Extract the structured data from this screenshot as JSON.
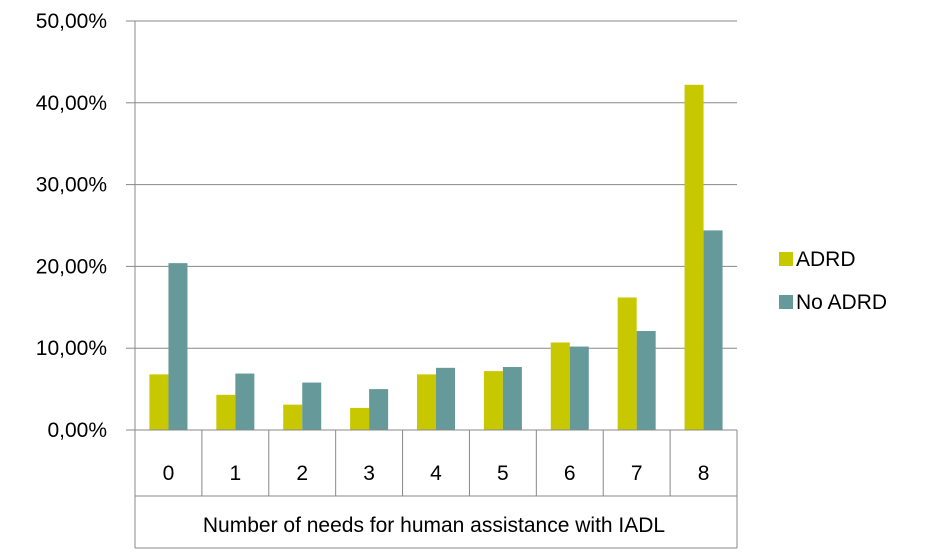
{
  "chart_data": {
    "type": "bar",
    "categories": [
      "0",
      "1",
      "2",
      "3",
      "4",
      "5",
      "6",
      "7",
      "8"
    ],
    "series": [
      {
        "name": "ADRD",
        "color": "#c8c800",
        "values": [
          6.8,
          4.3,
          3.1,
          2.7,
          6.8,
          7.2,
          10.7,
          16.2,
          42.2
        ]
      },
      {
        "name": "No ADRD",
        "color": "#669999",
        "values": [
          20.4,
          6.9,
          5.8,
          5.0,
          7.6,
          7.7,
          10.2,
          12.1,
          24.4
        ]
      }
    ],
    "y_ticks": [
      "0,00%",
      "10,00%",
      "20,00%",
      "30,00%",
      "40,00%",
      "50,00%"
    ],
    "ylim": [
      0,
      50
    ],
    "xlabel": "Number of needs for human assistance with IADL",
    "ylabel": "",
    "title": "",
    "grid": true,
    "legend_position": "right"
  }
}
